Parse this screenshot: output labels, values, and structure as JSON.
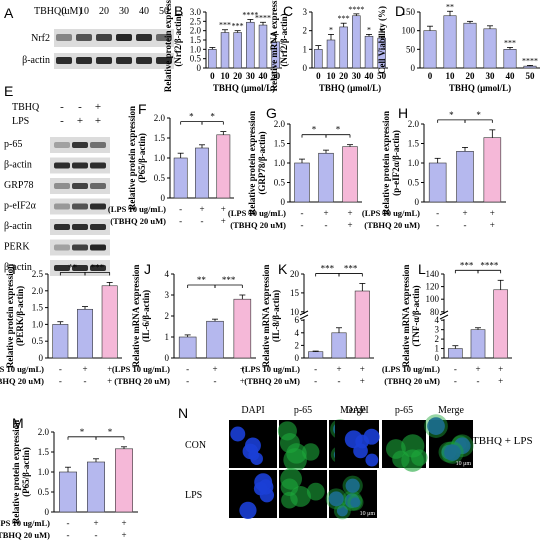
{
  "colors": {
    "bar_a": "#b5b8ee",
    "bar_b": "#f5b8d8",
    "bar_stroke": "#333333",
    "western_bg": "#dcdcdc",
    "band": "#1a1a1a",
    "dapi": "#1b3fd6",
    "p65": "#1ca63a"
  },
  "panel_A": {
    "label": "A",
    "treatment_label": "TBHQ(uM)",
    "doses": [
      "0",
      "10",
      "20",
      "30",
      "40",
      "50"
    ],
    "rows": [
      "Nrf2",
      "β-actin"
    ]
  },
  "panel_E": {
    "label": "E",
    "conditions": [
      {
        "name": "TBHQ",
        "values": [
          "-",
          "-",
          "+"
        ]
      },
      {
        "name": "LPS",
        "values": [
          "-",
          "+",
          "+"
        ]
      }
    ],
    "rows": [
      "p-65",
      "β-actin",
      "GRP78",
      "p-eIF2α",
      "β-actin",
      "PERK",
      "β-actin"
    ]
  },
  "treatment_rows": {
    "lps": [
      "(LPS 10 ug/mL)",
      "-",
      "+",
      "+"
    ],
    "tbhq": [
      "(TBHQ 20 uM)",
      "-",
      "-",
      "+"
    ]
  },
  "panel_N": {
    "label": "N",
    "columns": [
      "DAPI",
      "p-65",
      "Merge"
    ],
    "rows": [
      "CON",
      "LPS"
    ],
    "right_label": "TBHQ + LPS",
    "scale_bar": "10 μm"
  },
  "chart_data": [
    {
      "id": "B",
      "type": "bar",
      "label": "B",
      "ylabel": "Relative protein expression",
      "ylabel2": "(Nrf2/β-actin)",
      "xlabel": "TBHQ (μmol/L)",
      "categories": [
        "0",
        "10",
        "20",
        "30",
        "40",
        "50"
      ],
      "values": [
        1.0,
        1.9,
        1.9,
        2.45,
        2.3,
        1.4
      ],
      "errors": [
        0.1,
        0.15,
        0.1,
        0.15,
        0.15,
        0.4
      ],
      "ylim": [
        0,
        3
      ],
      "yticks": [
        "0",
        "0.5",
        "1.0",
        "1.5",
        "2.0",
        "2.5",
        "3.0"
      ],
      "sig": [
        "",
        "***",
        "***",
        "****",
        "****",
        ""
      ]
    },
    {
      "id": "C",
      "type": "bar",
      "label": "C",
      "ylabel": "Relative mRNA expression",
      "ylabel2": "(Nrf2/β-actin)",
      "xlabel": "TBHQ (μmol/L)",
      "categories": [
        "0",
        "10",
        "20",
        "30",
        "40",
        "50"
      ],
      "values": [
        1.0,
        1.5,
        2.2,
        2.8,
        1.7,
        1.6
      ],
      "errors": [
        0.2,
        0.3,
        0.2,
        0.1,
        0.1,
        0.1
      ],
      "ylim": [
        0,
        3
      ],
      "yticks": [
        "0",
        "1",
        "2",
        "3"
      ],
      "sig": [
        "",
        "*",
        "***",
        "****",
        "*",
        "*"
      ]
    },
    {
      "id": "D",
      "type": "bar",
      "label": "D",
      "ylabel": "Cell Viability (%)",
      "ylabel2": "",
      "xlabel": "TBHQ (μmol/L)",
      "categories": [
        "0",
        "10",
        "20",
        "30",
        "40",
        "50"
      ],
      "values": [
        100,
        140,
        120,
        105,
        50,
        5
      ],
      "errors": [
        12,
        12,
        5,
        8,
        5,
        2
      ],
      "ylim": [
        0,
        150
      ],
      "yticks": [
        "0",
        "50",
        "100",
        "150"
      ],
      "sig": [
        "",
        "**",
        "",
        "",
        "***",
        "****"
      ]
    },
    {
      "id": "F",
      "type": "bar",
      "label": "F",
      "ylabel": "Relative protein expression",
      "ylabel2": "(P65/β-actin)",
      "xlabel": "",
      "categories": [
        "1",
        "2",
        "3"
      ],
      "values": [
        1.0,
        1.25,
        1.58
      ],
      "errors": [
        0.12,
        0.08,
        0.08
      ],
      "ylim": [
        0,
        2.0
      ],
      "yticks": [
        "0",
        "0.5",
        "1.0",
        "1.5",
        "2.0"
      ],
      "sig": [],
      "pairs": [
        {
          "a": 0,
          "b": 1,
          "t": "*"
        },
        {
          "a": 1,
          "b": 2,
          "t": "*"
        }
      ]
    },
    {
      "id": "G",
      "type": "bar",
      "label": "G",
      "ylabel": "Relative protein expression",
      "ylabel2": "(GRP78/β-actin)",
      "xlabel": "",
      "categories": [
        "1",
        "2",
        "3"
      ],
      "values": [
        1.0,
        1.25,
        1.42
      ],
      "errors": [
        0.1,
        0.08,
        0.05
      ],
      "ylim": [
        0,
        2.0
      ],
      "yticks": [
        "0",
        "0.5",
        "1.0",
        "1.5",
        "2.0"
      ],
      "sig": [],
      "pairs": [
        {
          "a": 0,
          "b": 1,
          "t": "*"
        },
        {
          "a": 1,
          "b": 2,
          "t": "*"
        }
      ]
    },
    {
      "id": "H",
      "type": "bar",
      "label": "H",
      "ylabel": "Relative protein expression",
      "ylabel2": "(p-eIF2α/β-actin)",
      "xlabel": "",
      "categories": [
        "1",
        "2",
        "3"
      ],
      "values": [
        1.0,
        1.3,
        1.65
      ],
      "errors": [
        0.12,
        0.1,
        0.2
      ],
      "ylim": [
        0,
        2.0
      ],
      "yticks": [
        "0",
        "0.5",
        "1.0",
        "1.5",
        "2.0"
      ],
      "sig": [],
      "pairs": [
        {
          "a": 0,
          "b": 1,
          "t": "*"
        },
        {
          "a": 1,
          "b": 2,
          "t": "*"
        }
      ]
    },
    {
      "id": "I",
      "type": "bar",
      "label": "I",
      "ylabel": "Relative protein expression",
      "ylabel2": "(PERK/β-actin)",
      "xlabel": "",
      "categories": [
        "1",
        "2",
        "3"
      ],
      "values": [
        1.0,
        1.45,
        2.15
      ],
      "errors": [
        0.08,
        0.08,
        0.1
      ],
      "ylim": [
        0,
        2.5
      ],
      "yticks": [
        "0",
        "0.5",
        "1.0",
        "1.5",
        "2.0",
        "2.5"
      ],
      "sig": [],
      "pairs": [
        {
          "a": 0,
          "b": 1,
          "t": "**"
        },
        {
          "a": 1,
          "b": 2,
          "t": "***"
        }
      ]
    },
    {
      "id": "J",
      "type": "bar",
      "label": "J",
      "ylabel": "Relative mRNA expression",
      "ylabel2": "(IL-6/β-actin)",
      "xlabel": "",
      "categories": [
        "1",
        "2",
        "3"
      ],
      "values": [
        1.0,
        1.75,
        2.8
      ],
      "errors": [
        0.1,
        0.1,
        0.2
      ],
      "ylim": [
        0,
        4
      ],
      "yticks": [
        "0",
        "1",
        "2",
        "3",
        "4"
      ],
      "sig": [],
      "pairs": [
        {
          "a": 0,
          "b": 1,
          "t": "**"
        },
        {
          "a": 1,
          "b": 2,
          "t": "***"
        }
      ]
    },
    {
      "id": "K",
      "type": "bar",
      "label": "K",
      "ylabel": "Relative mRNA expression",
      "ylabel2": "(IL-8/β-actin)",
      "xlabel": "",
      "categories": [
        "1",
        "2",
        "3"
      ],
      "values": [
        1.0,
        4.0,
        15.5
      ],
      "errors": [
        0.1,
        0.8,
        2.0
      ],
      "ylim": [
        0,
        20
      ],
      "yticks": [
        "0",
        "2",
        "4",
        "6",
        "10",
        "15",
        "20"
      ],
      "broken": true,
      "sig": [],
      "pairs": [
        {
          "a": 0,
          "b": 1,
          "t": "***"
        },
        {
          "a": 1,
          "b": 2,
          "t": "***"
        }
      ]
    },
    {
      "id": "L",
      "type": "bar",
      "label": "L",
      "ylabel": "Relative mRNA expression",
      "ylabel2": "(TNF-α/β-actin)",
      "xlabel": "",
      "categories": [
        "1",
        "2",
        "3"
      ],
      "values": [
        1.0,
        3.0,
        115
      ],
      "errors": [
        0.3,
        0.2,
        15
      ],
      "ylim": [
        0,
        140
      ],
      "yticks": [
        "0",
        "1",
        "2",
        "3",
        "4",
        "80",
        "100",
        "120",
        "140"
      ],
      "broken": true,
      "sig": [],
      "pairs": [
        {
          "a": 0,
          "b": 1,
          "t": "***"
        },
        {
          "a": 1,
          "b": 2,
          "t": "****"
        }
      ]
    },
    {
      "id": "M",
      "type": "bar",
      "label": "M",
      "ylabel": "Relative protein expression",
      "ylabel2": "(P65/β-actin)",
      "xlabel": "",
      "categories": [
        "1",
        "2",
        "3"
      ],
      "values": [
        1.0,
        1.25,
        1.58
      ],
      "errors": [
        0.12,
        0.08,
        0.05
      ],
      "ylim": [
        0,
        2.0
      ],
      "yticks": [
        "0",
        "0.5",
        "1.0",
        "1.5",
        "2.0"
      ],
      "sig": [],
      "pairs": [
        {
          "a": 0,
          "b": 1,
          "t": "*"
        },
        {
          "a": 1,
          "b": 2,
          "t": "*"
        }
      ]
    }
  ]
}
